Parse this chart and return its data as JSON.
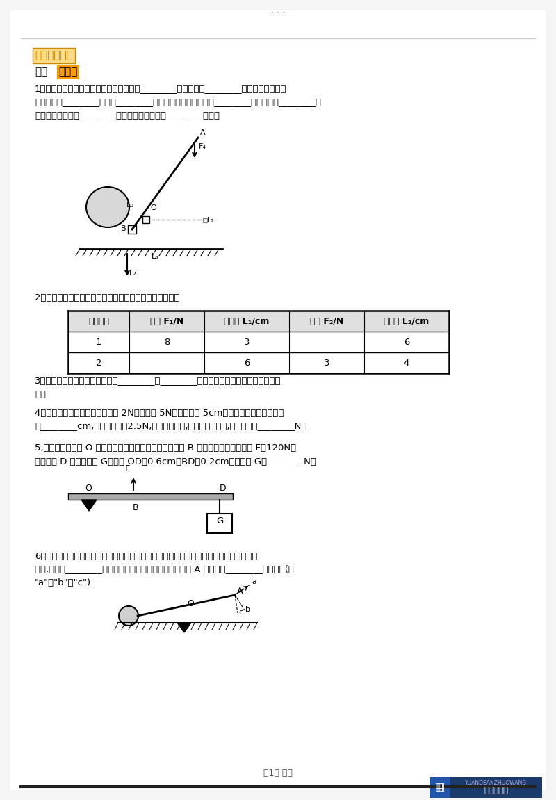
{
  "title_dots": "...",
  "section_label": "《巩固练习》",
  "bg_color": "#f5f5f5",
  "page_bg": "#ffffff",
  "table_headers": [
    "实验次数",
    "动力 F₁/N",
    "动力臂 L₁/cm",
    "阻力 F₂/N",
    "阻力臂 L₂/cm"
  ],
  "table_row1": [
    "1",
    "8",
    "3",
    "",
    "6"
  ],
  "table_row2": [
    "2",
    "",
    "6",
    "3",
    "4"
  ],
  "footer_text": "第1页 六页",
  "watermark_text": "YUANDEANZHUOWANG",
  "watermark_label": "元德安卓网"
}
